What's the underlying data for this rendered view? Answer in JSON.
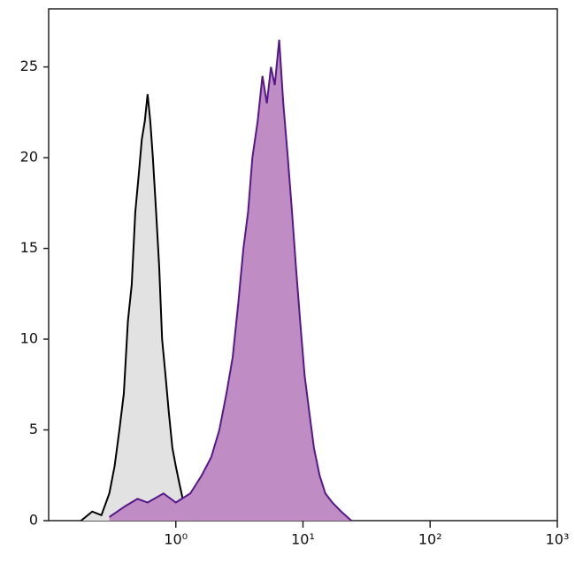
{
  "chart_data": {
    "type": "area",
    "xscale": "log",
    "xlim": [
      0.1,
      1000
    ],
    "ylim": [
      0,
      28.2
    ],
    "xticks": [
      {
        "value": 1,
        "label": "10⁰"
      },
      {
        "value": 10,
        "label": "10¹"
      },
      {
        "value": 100,
        "label": "10²"
      },
      {
        "value": 1000,
        "label": "10³"
      }
    ],
    "yticks": [
      0,
      5,
      10,
      15,
      20,
      25
    ],
    "series": [
      {
        "color": "#e2e2e2",
        "line_color": "#000000",
        "x": [
          0.18,
          0.22,
          0.26,
          0.3,
          0.33,
          0.36,
          0.39,
          0.42,
          0.45,
          0.48,
          0.51,
          0.54,
          0.57,
          0.6,
          0.63,
          0.66,
          0.7,
          0.74,
          0.78,
          0.83,
          0.88,
          0.94,
          1.0,
          1.07,
          1.15,
          1.25,
          1.4
        ],
        "values": [
          0,
          0.5,
          0.3,
          1.5,
          3,
          5,
          7,
          11,
          13,
          17,
          19,
          21,
          22,
          23.5,
          22,
          20,
          17,
          14,
          10,
          8,
          6,
          4,
          3,
          2,
          1,
          0.5,
          0
        ]
      },
      {
        "color": "#c08cc4",
        "line_color": "#54188a",
        "x": [
          0.3,
          0.4,
          0.5,
          0.6,
          0.8,
          1.0,
          1.3,
          1.6,
          1.9,
          2.2,
          2.5,
          2.8,
          3.1,
          3.4,
          3.7,
          4.0,
          4.4,
          4.8,
          5.2,
          5.6,
          6.0,
          6.5,
          7.0,
          7.6,
          8.2,
          8.8,
          9.5,
          10.3,
          11.2,
          12.2,
          13.5,
          15,
          17,
          20,
          24
        ],
        "values": [
          0.2,
          0.8,
          1.2,
          1.0,
          1.5,
          1.0,
          1.5,
          2.5,
          3.5,
          5,
          7,
          9,
          12,
          15,
          17,
          20,
          22,
          24.5,
          23,
          25,
          24,
          26.5,
          23,
          20,
          17,
          14,
          11,
          8,
          6,
          4,
          2.5,
          1.5,
          1.0,
          0.5,
          0
        ]
      }
    ]
  }
}
